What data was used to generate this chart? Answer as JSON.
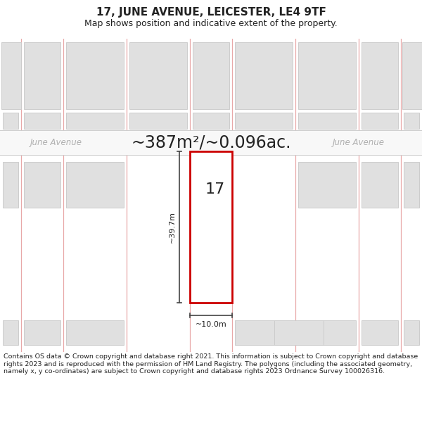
{
  "title": "17, JUNE AVENUE, LEICESTER, LE4 9TF",
  "subtitle": "Map shows position and indicative extent of the property.",
  "area_label": "~387m²/~0.096ac.",
  "road_label": "June Avenue",
  "property_number": "17",
  "dim_height": "~39.7m",
  "dim_width": "~10.0m",
  "copyright_text": "Contains OS data © Crown copyright and database right 2021. This information is subject to Crown copyright and database rights 2023 and is reproduced with the permission of HM Land Registry. The polygons (including the associated geometry, namely x, y co-ordinates) are subject to Crown copyright and database rights 2023 Ordnance Survey 100026316.",
  "fig_bg": "#ffffff",
  "map_bg": "#f0f0f0",
  "building_fill": "#e0e0e0",
  "building_edge": "#cccccc",
  "highlight_fill": "#ffffff",
  "highlight_edge": "#cc0000",
  "grid_color": "#e8a8a8",
  "road_line_color": "#cccccc",
  "dim_color": "#444444",
  "text_dark": "#222222",
  "text_road": "#b0b0b0",
  "title_fs": 11,
  "subtitle_fs": 9,
  "area_fs": 17,
  "road_fs": 8.5,
  "propnum_fs": 16,
  "dim_fs": 8,
  "copy_fs": 6.8
}
